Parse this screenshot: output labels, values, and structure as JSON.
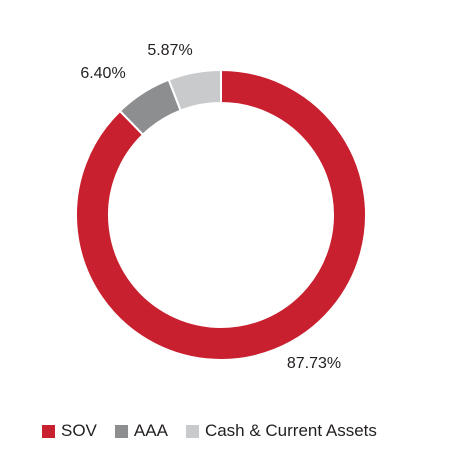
{
  "chart_data": {
    "type": "pie",
    "donut": true,
    "title": "",
    "legend_position": "bottom",
    "series": [
      {
        "name": "SOV",
        "value": 87.73,
        "label": "87.73%",
        "color": "#c8202f"
      },
      {
        "name": "AAA",
        "value": 6.4,
        "label": "6.40%",
        "color": "#8c8e90"
      },
      {
        "name": "Cash & Current Assets",
        "value": 5.87,
        "label": "5.87%",
        "color": "#c8cacc"
      }
    ]
  }
}
